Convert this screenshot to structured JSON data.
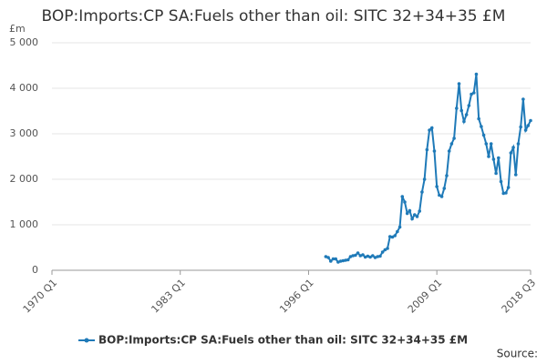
{
  "chart_data": {
    "type": "line",
    "title": "BOP:Imports:CP SA:Fuels other than oil: SITC 32+34+35 £M",
    "y_unit": "£m",
    "source": "Source:",
    "xlim": [
      1970,
      2018.5
    ],
    "xticks": [
      {
        "value": 1970,
        "label": "1970 Q1"
      },
      {
        "value": 1983,
        "label": "1983 Q1"
      },
      {
        "value": 1996,
        "label": "1996 Q1"
      },
      {
        "value": 2009,
        "label": "2009 Q1"
      },
      {
        "value": 2018.5,
        "label": "2018 Q3"
      }
    ],
    "ylim": [
      0,
      5000
    ],
    "yticks": [
      0,
      {
        "value": 1000,
        "label": "1 000"
      },
      {
        "value": 2000,
        "label": "2 000"
      },
      {
        "value": 3000,
        "label": "3 000"
      },
      {
        "value": 4000,
        "label": "4 000"
      },
      {
        "value": 5000,
        "label": "5 000"
      }
    ],
    "grid": true,
    "legend": "bottom",
    "x": [
      1997.75,
      1998,
      1998.25,
      1998.5,
      1998.75,
      1999,
      1999.25,
      1999.5,
      1999.75,
      2000,
      2000.25,
      2000.5,
      2000.75,
      2001,
      2001.25,
      2001.5,
      2001.75,
      2002,
      2002.25,
      2002.5,
      2002.75,
      2003,
      2003.25,
      2003.5,
      2003.75,
      2004,
      2004.25,
      2004.5,
      2004.75,
      2005,
      2005.25,
      2005.5,
      2005.75,
      2006,
      2006.25,
      2006.5,
      2006.75,
      2007,
      2007.25,
      2007.5,
      2007.75,
      2008,
      2008.25,
      2008.5,
      2008.75,
      2009,
      2009.25,
      2009.5,
      2009.75,
      2010,
      2010.25,
      2010.5,
      2010.75,
      2011,
      2011.25,
      2011.5,
      2011.75,
      2012,
      2012.25,
      2012.5,
      2012.75,
      2013,
      2013.25,
      2013.5,
      2013.75,
      2014,
      2014.25,
      2014.5,
      2014.75,
      2015,
      2015.25,
      2015.5,
      2015.75,
      2016,
      2016.25,
      2016.5,
      2016.75,
      2017,
      2017.25,
      2017.5,
      2017.75,
      2018,
      2018.25,
      2018.5
    ],
    "series": [
      {
        "name": "BOP:Imports:CP SA:Fuels other than oil: SITC 32+34+35 £M",
        "color": "#1f7ab8",
        "values": [
          300,
          280,
          200,
          250,
          250,
          180,
          200,
          210,
          220,
          230,
          300,
          320,
          330,
          380,
          320,
          340,
          290,
          310,
          290,
          320,
          280,
          300,
          310,
          400,
          450,
          480,
          740,
          730,
          760,
          850,
          950,
          1620,
          1500,
          1250,
          1310,
          1130,
          1220,
          1180,
          1300,
          1720,
          2000,
          2650,
          3080,
          3130,
          2620,
          1840,
          1650,
          1620,
          1800,
          2080,
          2620,
          2780,
          2900,
          3560,
          4100,
          3510,
          3270,
          3420,
          3620,
          3870,
          3900,
          4310,
          3330,
          3160,
          2970,
          2780,
          2500,
          2780,
          2440,
          2130,
          2470,
          1950,
          1690,
          1700,
          1820,
          2580,
          2700,
          2100,
          2780,
          3150,
          3760,
          3080,
          3180,
          3290
        ]
      }
    ]
  }
}
